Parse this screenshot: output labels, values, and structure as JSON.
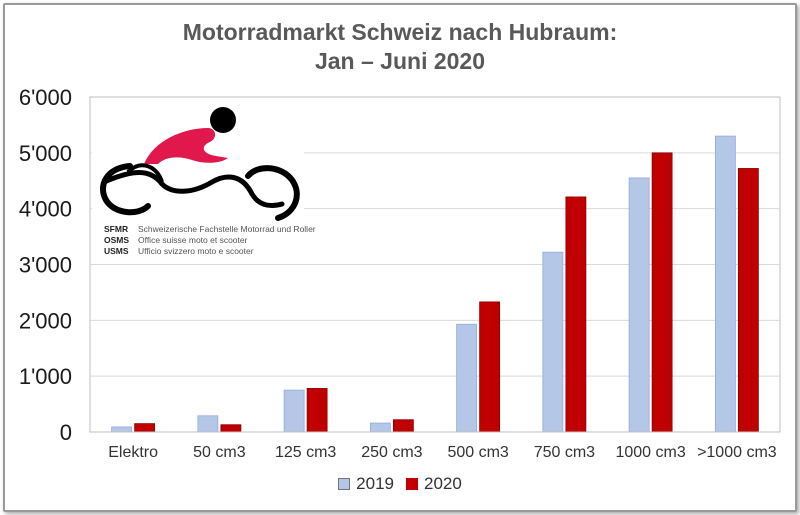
{
  "colors": {
    "series_2019": "#b4c7e7",
    "series_2020": "#c00000",
    "logo_red": "#e0184c"
  },
  "logo": {
    "icon": "motorcycle-rider-icon",
    "lines": [
      {
        "abbr": "SFMR",
        "text": "Schweizerische Fachstelle Motorrad und Roller"
      },
      {
        "abbr": "OSMS",
        "text": "Office suisse moto et scooter"
      },
      {
        "abbr": "USMS",
        "text": "Ufficio svizzero moto e scooter"
      }
    ]
  },
  "chart_data": {
    "type": "bar",
    "title": [
      "Motorradmarkt Schweiz nach Hubraum:",
      "Jan – Juni 2020"
    ],
    "categories": [
      "Elektro",
      "50 cm3",
      "125 cm3",
      "250 cm3",
      "500 cm3",
      "750 cm3",
      "1000 cm3",
      ">1000 cm3"
    ],
    "series": [
      {
        "name": "2019",
        "values": [
          90,
          290,
          750,
          160,
          1930,
          3220,
          4550,
          5300
        ]
      },
      {
        "name": "2020",
        "values": [
          150,
          130,
          780,
          220,
          2330,
          4210,
          5000,
          4720
        ]
      }
    ],
    "yticks": [
      "0",
      "1'000",
      "2'000",
      "3'000",
      "4'000",
      "5'000",
      "6'000"
    ],
    "ylim": [
      0,
      6000
    ],
    "grid": true,
    "legend_position": "bottom"
  }
}
